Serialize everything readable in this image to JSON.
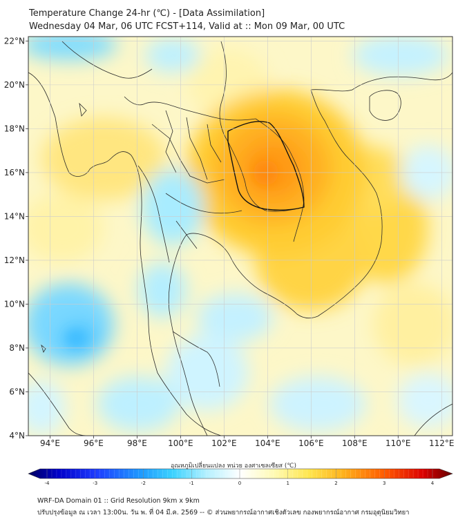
{
  "title": {
    "line1": "Temperature Change 24-hr (℃) - [Data Assimilation]",
    "line2": "Wednesday 04 Mar, 06 UTC FCST+114, Valid at :: Mon 09 Mar, 00 UTC"
  },
  "map": {
    "lon_range": [
      93,
      112.5
    ],
    "lat_range": [
      4,
      22.2
    ],
    "lon_ticks": [
      "94°E",
      "96°E",
      "98°E",
      "100°E",
      "102°E",
      "104°E",
      "106°E",
      "108°E",
      "110°E",
      "112°E"
    ],
    "lat_ticks": [
      "22°N",
      "20°N",
      "18°N",
      "16°N",
      "14°N",
      "12°N",
      "10°N",
      "8°N",
      "6°N",
      "4°N"
    ],
    "grid": true,
    "field": "24-hr temperature change",
    "warm_centre": {
      "lon": 104,
      "lat": 16,
      "value": 2.5
    }
  },
  "colorbar": {
    "label": "อุณหภูมิเปลี่ยนแปลง หน่วย องศาเซลเซียส (℃)",
    "range": [
      -4,
      4
    ],
    "tick_labels": [
      "-4",
      "-3",
      "-2",
      "-1",
      "0",
      "1",
      "2",
      "3",
      "4"
    ],
    "colors": [
      "#000080",
      "#0000d0",
      "#1e5aff",
      "#28a0ff",
      "#3cd2ff",
      "#96e6ff",
      "#d6f5ff",
      "#ffffff",
      "#fffac8",
      "#fff08c",
      "#ffd23c",
      "#ffaa1e",
      "#ff6e00",
      "#ff2800",
      "#c80000",
      "#780000"
    ]
  },
  "footer": {
    "line1": "WRF-DA Domain 01 :: Grid Resolution 9km x 9km",
    "line2": "ปรับปรุงข้อมูล ณ เวลา 13:00น. วัน พ. ที่ 04 มี.ค. 2569 -- © ส่วนพยากรณ์อากาศเชิงตัวเลข กองพยากรณ์อากาศ กรมอุตุนิยมวิทยา"
  }
}
